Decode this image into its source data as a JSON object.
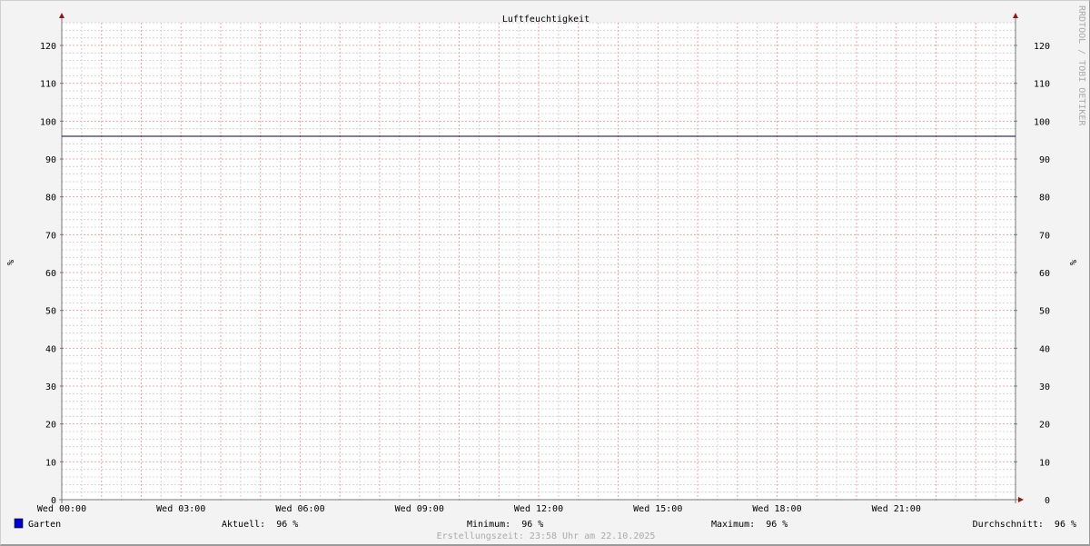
{
  "chart_data": {
    "type": "line",
    "title": "Luftfeuchtigkeit",
    "ylabel": "%",
    "ylabel_right": "%",
    "watermark": "RRDTOOL / TOBI OETIKER",
    "ylim": [
      0,
      126
    ],
    "yticks": [
      0,
      10,
      20,
      30,
      40,
      50,
      60,
      70,
      80,
      90,
      100,
      110,
      120
    ],
    "xlim_hours": [
      0,
      24
    ],
    "xticks": [
      {
        "hour": 0,
        "label": "Wed 00:00"
      },
      {
        "hour": 3,
        "label": "Wed 03:00"
      },
      {
        "hour": 6,
        "label": "Wed 06:00"
      },
      {
        "hour": 9,
        "label": "Wed 09:00"
      },
      {
        "hour": 12,
        "label": "Wed 12:00"
      },
      {
        "hour": 15,
        "label": "Wed 15:00"
      },
      {
        "hour": 18,
        "label": "Wed 18:00"
      },
      {
        "hour": 21,
        "label": "Wed 21:00"
      }
    ],
    "grid": true,
    "series": [
      {
        "name": "Garten",
        "color": "#0000cc",
        "x_hours": [
          0,
          24
        ],
        "values": [
          96,
          96
        ]
      }
    ],
    "legend": {
      "name": "Garten",
      "aktuell": "Aktuell:  96 %",
      "minimum": "Minimum:  96 %",
      "maximum": "Maximum:  96 %",
      "durchschnitt": "Durchschnitt:  96 %"
    },
    "footer": "Erstellungszeit: 23:58 Uhr am 22.10.2025"
  }
}
